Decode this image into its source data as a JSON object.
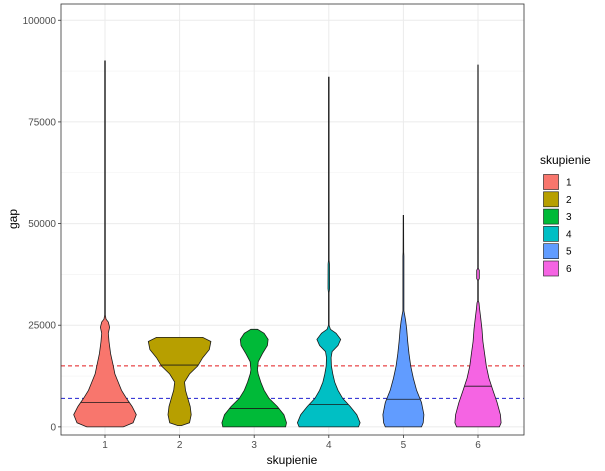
{
  "chart_data": {
    "type": "violin",
    "xlabel": "skupienie",
    "ylabel": "gap",
    "ylim": [
      -2000,
      104000
    ],
    "y_ticks": [
      0,
      25000,
      50000,
      75000,
      100000
    ],
    "y_tick_labels": [
      "0",
      "25000",
      "50000",
      "75000",
      "100000"
    ],
    "categories": [
      "1",
      "2",
      "3",
      "4",
      "5",
      "6"
    ],
    "legend": {
      "title": "skupienie",
      "placement": "right",
      "entries": [
        "1",
        "2",
        "3",
        "4",
        "5",
        "6"
      ]
    },
    "grid": true,
    "series": [
      {
        "category": "1",
        "color": "#F8766D",
        "median": 6000,
        "max": 90000,
        "profile": [
          [
            0,
            0.55
          ],
          [
            1000,
            0.85
          ],
          [
            3000,
            0.95
          ],
          [
            5000,
            0.82
          ],
          [
            7000,
            0.65
          ],
          [
            9000,
            0.5
          ],
          [
            11000,
            0.4
          ],
          [
            13000,
            0.3
          ],
          [
            15000,
            0.25
          ],
          [
            18000,
            0.17
          ],
          [
            21000,
            0.12
          ],
          [
            23000,
            0.1
          ],
          [
            24500,
            0.14
          ],
          [
            25800,
            0.1
          ],
          [
            26500,
            0.03
          ],
          [
            27500,
            0.01
          ],
          [
            90000,
            0.01
          ]
        ]
      },
      {
        "category": "2",
        "color": "#B79F00",
        "median": 15200,
        "max": 22000,
        "profile": [
          [
            300,
            0.05
          ],
          [
            1000,
            0.3
          ],
          [
            3000,
            0.35
          ],
          [
            5000,
            0.32
          ],
          [
            7000,
            0.25
          ],
          [
            9000,
            0.18
          ],
          [
            11000,
            0.15
          ],
          [
            13000,
            0.3
          ],
          [
            15000,
            0.55
          ],
          [
            17000,
            0.7
          ],
          [
            19000,
            0.9
          ],
          [
            21000,
            0.95
          ],
          [
            22000,
            0.7
          ]
        ]
      },
      {
        "category": "3",
        "color": "#00BA38",
        "median": 4500,
        "max": 24000,
        "profile": [
          [
            0,
            0.95
          ],
          [
            1000,
            0.98
          ],
          [
            3000,
            0.9
          ],
          [
            5000,
            0.7
          ],
          [
            7000,
            0.45
          ],
          [
            9000,
            0.3
          ],
          [
            11000,
            0.2
          ],
          [
            13000,
            0.12
          ],
          [
            14000,
            0.1
          ],
          [
            16000,
            0.12
          ],
          [
            18000,
            0.25
          ],
          [
            20000,
            0.4
          ],
          [
            21500,
            0.42
          ],
          [
            23000,
            0.3
          ],
          [
            24000,
            0.1
          ]
        ]
      },
      {
        "category": "4",
        "color": "#00BFC4",
        "median": 5500,
        "max": 86000,
        "profile": [
          [
            0,
            0.9
          ],
          [
            1000,
            0.95
          ],
          [
            3000,
            0.85
          ],
          [
            5000,
            0.65
          ],
          [
            7000,
            0.42
          ],
          [
            9000,
            0.28
          ],
          [
            11000,
            0.18
          ],
          [
            13000,
            0.12
          ],
          [
            15000,
            0.08
          ],
          [
            17000,
            0.07
          ],
          [
            18500,
            0.1
          ],
          [
            20000,
            0.28
          ],
          [
            21500,
            0.36
          ],
          [
            23000,
            0.22
          ],
          [
            24000,
            0.05
          ],
          [
            25000,
            0.01
          ],
          [
            33000,
            0.01
          ],
          [
            34000,
            0.025
          ],
          [
            40000,
            0.02
          ],
          [
            41000,
            0.01
          ],
          [
            86000,
            0.01
          ]
        ]
      },
      {
        "category": "5",
        "color": "#619CFF",
        "median": 6800,
        "max": 52000,
        "profile": [
          [
            0,
            0.55
          ],
          [
            1000,
            0.6
          ],
          [
            3000,
            0.62
          ],
          [
            6000,
            0.55
          ],
          [
            9000,
            0.4
          ],
          [
            12000,
            0.3
          ],
          [
            15000,
            0.22
          ],
          [
            18000,
            0.17
          ],
          [
            21000,
            0.13
          ],
          [
            24000,
            0.1
          ],
          [
            26000,
            0.07
          ],
          [
            27500,
            0.04
          ],
          [
            28500,
            0.015
          ],
          [
            42000,
            0.015
          ],
          [
            43000,
            0.01
          ],
          [
            52000,
            0.005
          ]
        ]
      },
      {
        "category": "6",
        "color": "#F564E3",
        "median": 10000,
        "max": 89000,
        "profile": [
          [
            0,
            0.65
          ],
          [
            1000,
            0.7
          ],
          [
            3000,
            0.68
          ],
          [
            6000,
            0.58
          ],
          [
            9000,
            0.45
          ],
          [
            12000,
            0.33
          ],
          [
            15000,
            0.25
          ],
          [
            18000,
            0.2
          ],
          [
            21000,
            0.15
          ],
          [
            24000,
            0.12
          ],
          [
            27000,
            0.08
          ],
          [
            29000,
            0.05
          ],
          [
            30500,
            0.03
          ],
          [
            31000,
            0.01
          ],
          [
            36000,
            0.01
          ],
          [
            36500,
            0.04
          ],
          [
            38500,
            0.04
          ],
          [
            39000,
            0.01
          ],
          [
            89000,
            0.005
          ]
        ]
      }
    ],
    "reference_lines": [
      {
        "y": 15000,
        "color": "#E41A1C",
        "style": "dashed"
      },
      {
        "y": 7000,
        "color": "#2020D0",
        "style": "dashed"
      }
    ]
  }
}
